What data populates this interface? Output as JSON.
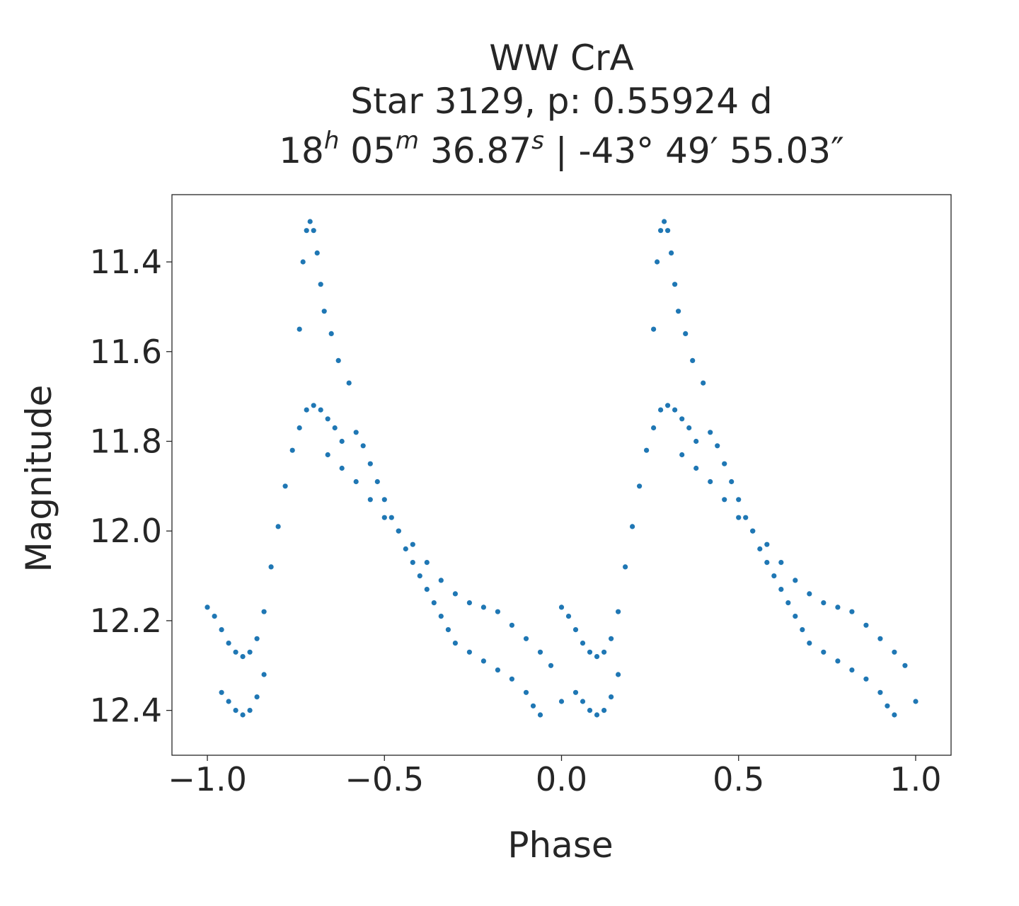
{
  "chart_data": {
    "type": "scatter",
    "title": {
      "line1": "WW CrA",
      "line2": "Star 3129, p: 0.55924 d",
      "ra": {
        "h": "18",
        "m": "05",
        "s": "36.87"
      },
      "separator": "|",
      "dec": {
        "deg": "-43°",
        "arcmin": "49′",
        "arcsec": "55.03″"
      },
      "unit_h": "h",
      "unit_m": "m",
      "unit_s": "s"
    },
    "xlabel": "Phase",
    "ylabel": "Magnitude",
    "xlim": [
      -1.1,
      1.1
    ],
    "ylim": [
      12.5,
      11.25
    ],
    "y_inverted": true,
    "x_ticks": [
      -1.0,
      -0.5,
      0.0,
      0.5,
      1.0
    ],
    "x_tick_labels": [
      "−1.0",
      "−0.5",
      "0.0",
      "0.5",
      "1.0"
    ],
    "y_ticks": [
      11.4,
      11.6,
      11.8,
      12.0,
      12.2,
      12.4
    ],
    "y_tick_labels": [
      "11.4",
      "11.6",
      "11.8",
      "12.0",
      "12.2",
      "12.4"
    ],
    "grid": false,
    "point_color": "#1f77b4",
    "series": [
      {
        "phase_folded_light_curve": [
          [
            0.0,
            12.17
          ],
          [
            0.02,
            12.19
          ],
          [
            0.04,
            12.22
          ],
          [
            0.06,
            12.25
          ],
          [
            0.08,
            12.27
          ],
          [
            0.1,
            12.28
          ],
          [
            0.12,
            12.27
          ],
          [
            0.14,
            12.24
          ],
          [
            0.16,
            12.18
          ],
          [
            0.18,
            12.08
          ],
          [
            0.2,
            11.99
          ],
          [
            0.22,
            11.9
          ],
          [
            0.24,
            11.82
          ],
          [
            0.26,
            11.77
          ],
          [
            0.28,
            11.73
          ],
          [
            0.3,
            11.72
          ],
          [
            0.32,
            11.73
          ],
          [
            0.34,
            11.75
          ],
          [
            0.36,
            11.77
          ],
          [
            0.38,
            11.8
          ],
          [
            0.26,
            11.55
          ],
          [
            0.27,
            11.4
          ],
          [
            0.28,
            11.33
          ],
          [
            0.29,
            11.31
          ],
          [
            0.3,
            11.33
          ],
          [
            0.31,
            11.38
          ],
          [
            0.32,
            11.45
          ],
          [
            0.33,
            11.51
          ],
          [
            0.35,
            11.56
          ],
          [
            0.37,
            11.62
          ],
          [
            0.4,
            11.67
          ],
          [
            0.34,
            11.83
          ],
          [
            0.38,
            11.86
          ],
          [
            0.42,
            11.89
          ],
          [
            0.46,
            11.93
          ],
          [
            0.5,
            11.97
          ],
          [
            0.54,
            12.0
          ],
          [
            0.58,
            12.03
          ],
          [
            0.62,
            12.07
          ],
          [
            0.66,
            12.11
          ],
          [
            0.7,
            12.14
          ],
          [
            0.74,
            12.16
          ],
          [
            0.78,
            12.17
          ],
          [
            0.82,
            12.18
          ],
          [
            0.86,
            12.21
          ],
          [
            0.9,
            12.24
          ],
          [
            0.94,
            12.27
          ],
          [
            0.97,
            12.3
          ],
          [
            1.0,
            12.38
          ],
          [
            0.42,
            11.78
          ],
          [
            0.44,
            11.81
          ],
          [
            0.46,
            11.85
          ],
          [
            0.48,
            11.89
          ],
          [
            0.5,
            11.93
          ],
          [
            0.52,
            11.97
          ],
          [
            0.54,
            12.0
          ],
          [
            0.56,
            12.04
          ],
          [
            0.58,
            12.07
          ],
          [
            0.6,
            12.1
          ],
          [
            0.62,
            12.13
          ],
          [
            0.64,
            12.16
          ],
          [
            0.66,
            12.19
          ],
          [
            0.68,
            12.22
          ],
          [
            0.7,
            12.25
          ],
          [
            0.74,
            12.27
          ],
          [
            0.78,
            12.29
          ],
          [
            0.82,
            12.31
          ],
          [
            0.86,
            12.33
          ],
          [
            0.9,
            12.36
          ],
          [
            0.92,
            12.39
          ],
          [
            0.94,
            12.41
          ],
          [
            0.04,
            12.36
          ],
          [
            0.06,
            12.38
          ],
          [
            0.08,
            12.4
          ],
          [
            0.1,
            12.41
          ],
          [
            0.12,
            12.4
          ],
          [
            0.14,
            12.37
          ],
          [
            0.16,
            12.32
          ]
        ]
      }
    ]
  }
}
